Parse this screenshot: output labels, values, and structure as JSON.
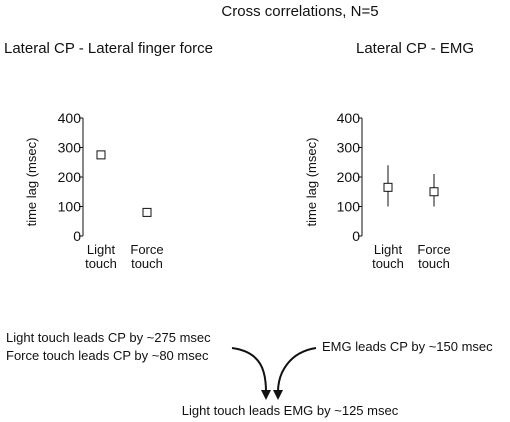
{
  "figure": {
    "title": "Cross correlations, N=5"
  },
  "chart_data": [
    {
      "type": "scatter",
      "title": "Lateral CP - Lateral finger force",
      "xlabel": "",
      "ylabel": "time lag (msec)",
      "categories": [
        "Light\ntouch",
        "Force\ntouch"
      ],
      "category_lines": [
        [
          "Light",
          "touch"
        ],
        [
          "Force",
          "touch"
        ]
      ],
      "values": [
        275,
        80
      ],
      "errors": [
        null,
        null
      ],
      "yticks": [
        0,
        100,
        200,
        300,
        400
      ],
      "ylim": [
        0,
        400
      ],
      "grid": false,
      "marker": "open-square"
    },
    {
      "type": "scatter",
      "title": "Lateral CP - EMG",
      "xlabel": "",
      "ylabel": "time lag (msec)",
      "categories": [
        "Light\ntouch",
        "Force\ntouch"
      ],
      "category_lines": [
        [
          "Light",
          "touch"
        ],
        [
          "Force",
          "touch"
        ]
      ],
      "values": [
        165,
        150
      ],
      "errors": [
        [
          100,
          240
        ],
        [
          100,
          210
        ]
      ],
      "yticks": [
        0,
        100,
        200,
        300,
        400
      ],
      "ylim": [
        0,
        400
      ],
      "grid": false,
      "marker": "open-square"
    }
  ],
  "annotations": {
    "left_line1": "Light touch leads CP by ~275 msec",
    "left_line2": "Force touch leads CP by ~80 msec",
    "right_text": "EMG leads CP by ~150 msec",
    "conclusion": "Light touch leads EMG by ~125 msec"
  }
}
